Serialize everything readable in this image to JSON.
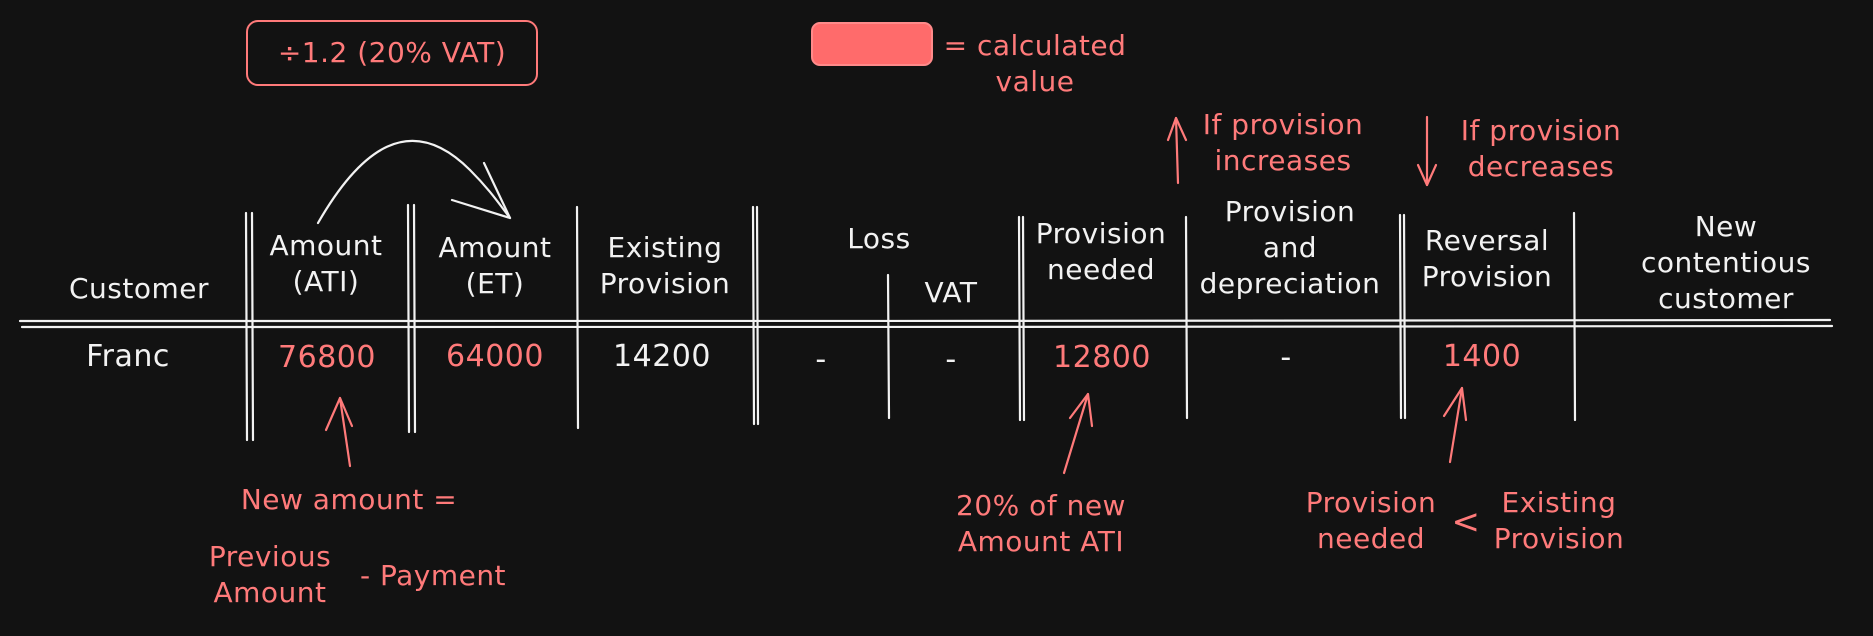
{
  "conversion_note": "÷1.2 (20% VAT)",
  "legend": {
    "swatch_color": "#ff6b6b",
    "label": "= calculated\nvalue"
  },
  "columns": [
    {
      "key": "customer",
      "label": "Customer"
    },
    {
      "key": "amount_ati",
      "label": "Amount\n(ATI)"
    },
    {
      "key": "amount_et",
      "label": "Amount\n(ET)"
    },
    {
      "key": "existing_provision",
      "label": "Existing\nProvision"
    },
    {
      "key": "loss",
      "label": "Loss"
    },
    {
      "key": "vat",
      "label": "VAT"
    },
    {
      "key": "provision_needed",
      "label": "Provision\nneeded"
    },
    {
      "key": "provision_depreciation",
      "label": "Provision\nand\ndepreciation"
    },
    {
      "key": "reversal_provision",
      "label": "Reversal\nProvision"
    },
    {
      "key": "new_contentious",
      "label": "New contentious\ncustomer"
    }
  ],
  "row": {
    "customer": "Franc",
    "amount_ati": "76800",
    "amount_et": "64000",
    "existing_provision": "14200",
    "loss": "-",
    "vat": "-",
    "provision_needed": "12800",
    "provision_depreciation": "-",
    "reversal_provision": "1400",
    "new_contentious": ""
  },
  "annotations": {
    "increase": "If provision\nincreases",
    "decrease": "If provision\ndecreases",
    "new_amount": "New amount =",
    "previous_amount": "Previous\nAmount",
    "minus_payment": "- Payment",
    "twenty_percent": "20% of new\nAmount ATI",
    "provision_needed": "Provision\nneeded",
    "less_than": "<",
    "existing_provision": "Existing\nProvision"
  },
  "colors": {
    "accent": "#ff7a7a",
    "ink": "#f2f2f2",
    "background": "#121212"
  }
}
